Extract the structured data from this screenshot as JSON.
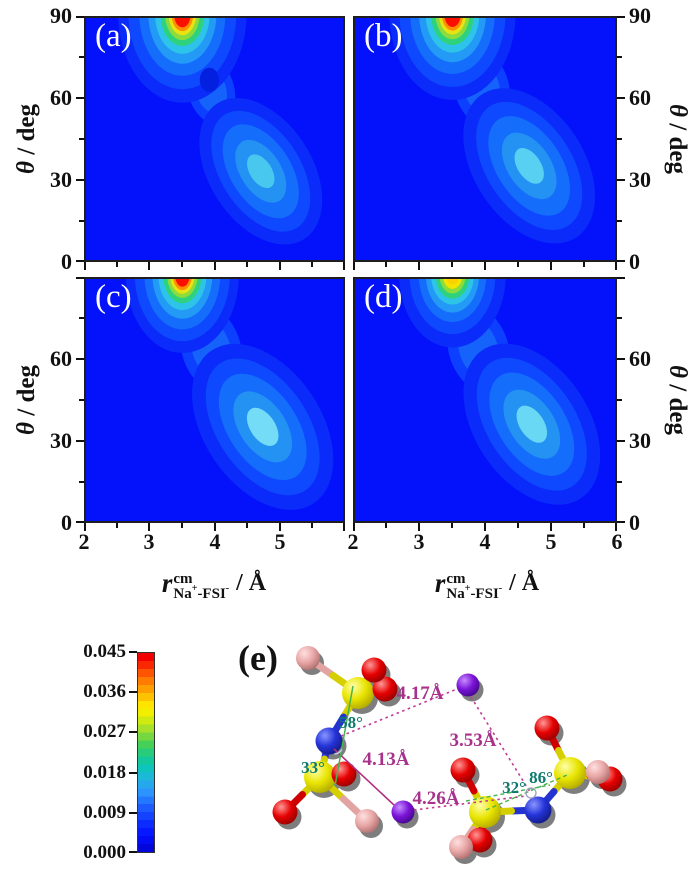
{
  "labels": {
    "theta": "θ",
    "deg": " / deg"
  },
  "xlabel": {
    "r": "r",
    "sup": "cm",
    "na": "Na",
    "plus": "+",
    "fsi": "-FSI",
    "minus": "-",
    "unit": " / Å"
  },
  "axes": {
    "y_tick_labels_full": [
      "90",
      "60",
      "30",
      "0"
    ],
    "y_tick_labels_row2": [
      "60",
      "30",
      "0"
    ],
    "x_tick_labels_left": [
      "2",
      "3",
      "4",
      "5"
    ],
    "x_tick_labels_right": [
      "2",
      "3",
      "4",
      "5",
      "6"
    ],
    "tick_fractions": {
      "x_major": [
        0,
        0.25,
        0.5,
        0.75,
        1
      ],
      "x_minor": [
        0.125,
        0.375,
        0.625,
        0.875
      ],
      "y_major": [
        0,
        0.3333,
        0.6667,
        1
      ],
      "y_minor": [
        0.1667,
        0.5,
        0.8333
      ]
    }
  },
  "chart_data": {
    "type": "heatmap",
    "xlabel": "r_cm(Na+–FSI-) / Å",
    "ylabel": "θ / deg",
    "xlim": [
      2,
      6
    ],
    "ylim": [
      0,
      90
    ],
    "legend_position": "colorbar lower-left",
    "grid": false,
    "subplots": [
      {
        "label": "(a)",
        "primary_peak": {
          "r_angstrom": 3.5,
          "theta_deg": 90,
          "density": 0.045
        },
        "secondary_ridge": {
          "r_range": [
            3.9,
            5.4
          ],
          "theta_range": [
            8,
            65
          ],
          "density": 0.012
        }
      },
      {
        "label": "(b)",
        "primary_peak": {
          "r_angstrom": 3.5,
          "theta_deg": 90,
          "density": 0.044
        },
        "secondary_ridge": {
          "r_range": [
            3.9,
            5.4
          ],
          "theta_range": [
            8,
            65
          ],
          "density": 0.013
        }
      },
      {
        "label": "(c)",
        "primary_peak": {
          "r_angstrom": 3.5,
          "theta_deg": 90,
          "density": 0.043
        },
        "secondary_ridge": {
          "r_range": [
            4.0,
            5.5
          ],
          "theta_range": [
            10,
            65
          ],
          "density": 0.015
        }
      },
      {
        "label": "(d)",
        "primary_peak": {
          "r_angstrom": 3.5,
          "theta_deg": 90,
          "density": 0.035
        },
        "secondary_ridge": {
          "r_range": [
            4.0,
            5.5
          ],
          "theta_range": [
            10,
            65
          ],
          "density": 0.014
        }
      }
    ],
    "colorbar": {
      "min": 0.0,
      "max": 0.045,
      "ticks": [
        "0.045",
        "0.036",
        "0.027",
        "0.018",
        "0.009",
        "0.000"
      ],
      "bands": [
        "#f20000",
        "#fa2800",
        "#ff5400",
        "#ff7c00",
        "#ff9e00",
        "#ffc200",
        "#ffe400",
        "#f2ee00",
        "#ceea10",
        "#a6e028",
        "#76d840",
        "#46d058",
        "#28cc7a",
        "#14c89e",
        "#10c4be",
        "#1cb8d8",
        "#28a8ec",
        "#2c94fc",
        "#2478ff",
        "#1c5cff",
        "#1442ff",
        "#0c2cff",
        "#0618ff",
        "#030cf2",
        "#0206da"
      ]
    },
    "render_model": {
      "bg": "#0411fb",
      "hotspot_center_theta": 91.5,
      "hotspot_strong": [
        [
          "#0A2BFA",
          1.0,
          33
        ],
        [
          "#0E49FF",
          0.84,
          28
        ],
        [
          "#156DFC",
          0.67,
          23
        ],
        [
          "#239AF5",
          0.53,
          18.5
        ],
        [
          "#2EC4E9",
          0.425,
          14.8
        ],
        [
          "#2FD27C",
          0.34,
          11.9
        ],
        [
          "#8CDC3C",
          0.27,
          9.7
        ],
        [
          "#E8E414",
          0.215,
          7.9
        ],
        [
          "#FF8E00",
          0.17,
          6.4
        ],
        [
          "#FB0F00",
          0.13,
          5.0
        ]
      ],
      "hotspot_weak": [
        [
          "#0A2BFA",
          0.82,
          27
        ],
        [
          "#0E49FF",
          0.66,
          22
        ],
        [
          "#156DFC",
          0.52,
          17.5
        ],
        [
          "#239AF5",
          0.41,
          14
        ],
        [
          "#2EC4E9",
          0.33,
          11
        ],
        [
          "#2FD27C",
          0.26,
          8.8
        ],
        [
          "#8CDC3C",
          0.2,
          6.9
        ],
        [
          "#F0E400",
          0.15,
          5.2
        ],
        [
          "#FFD000",
          0.1,
          3.6
        ]
      ],
      "connector": [
        [
          "#0D3FFF",
          0.4,
          14
        ],
        [
          "#1563FA",
          0.26,
          9.5
        ]
      ],
      "plume": [
        [
          "#0A2BFA",
          0.8,
          30
        ],
        [
          "#0E49FF",
          0.62,
          25
        ],
        [
          "#156DFC",
          0.47,
          19.5
        ],
        [
          "#2492F2",
          0.315,
          13
        ],
        [
          "CORE",
          0.17,
          7
        ]
      ],
      "panels": [
        {
          "hotspot": "strong",
          "hs_scale": 1.0,
          "hs_x": 3.5,
          "plume_center": [
            4.72,
            33
          ],
          "plume_angle": -33,
          "plume_scale": 1.0,
          "core": "#49C8EF",
          "conn_center": [
            3.95,
            63
          ],
          "conn_angle": -15,
          "conn_scale": 0.9,
          "dimple": [
            3.92,
            67
          ]
        },
        {
          "hotspot": "strong",
          "hs_scale": 0.97,
          "hs_x": 3.5,
          "plume_center": [
            4.68,
            35
          ],
          "plume_angle": -33,
          "plume_scale": 1.06,
          "core": "#58D0F2",
          "conn_center": [
            3.95,
            64
          ],
          "conn_angle": -15,
          "conn_scale": 1.05
        },
        {
          "hotspot": "strong",
          "hs_scale": 0.88,
          "hs_x": 3.5,
          "plume_center": [
            4.75,
            35
          ],
          "plume_angle": -34,
          "plume_scale": 1.14,
          "core": "#74DCF6",
          "conn_center": [
            3.95,
            64
          ],
          "conn_angle": -16,
          "conn_scale": 1.15
        },
        {
          "hotspot": "weak",
          "hs_scale": 1.0,
          "hs_x": 3.5,
          "plume_center": [
            4.72,
            36
          ],
          "plume_angle": -33,
          "plume_scale": 1.1,
          "core": "#68D8F4",
          "conn_center": [
            3.9,
            64
          ],
          "conn_angle": -16,
          "conn_scale": 1.15
        }
      ]
    }
  },
  "molecule": {
    "panel_label": "(e)",
    "atom_colors": {
      "sulfur": "#e8e400",
      "oxygen": "#e00000",
      "nitrogen": "#2433cf",
      "fluorine": "#e2a3a3",
      "sodium": "#7a10d8"
    },
    "distances": [
      {
        "label": "4.17Å",
        "between": "N of left FSI – upper Na"
      },
      {
        "label": "4.13Å",
        "between": "N of left FSI – lower Na"
      },
      {
        "label": "3.53Å",
        "between": "upper Na – right FSI"
      },
      {
        "label": "4.26Å",
        "between": "lower Na – right FSI"
      }
    ],
    "angles": [
      {
        "label": "58°"
      },
      {
        "label": "33°"
      },
      {
        "label": "32°"
      },
      {
        "label": "86°"
      }
    ],
    "annotation_colors": {
      "distance": "#a8318c",
      "angle": "#0e7a6e"
    }
  }
}
